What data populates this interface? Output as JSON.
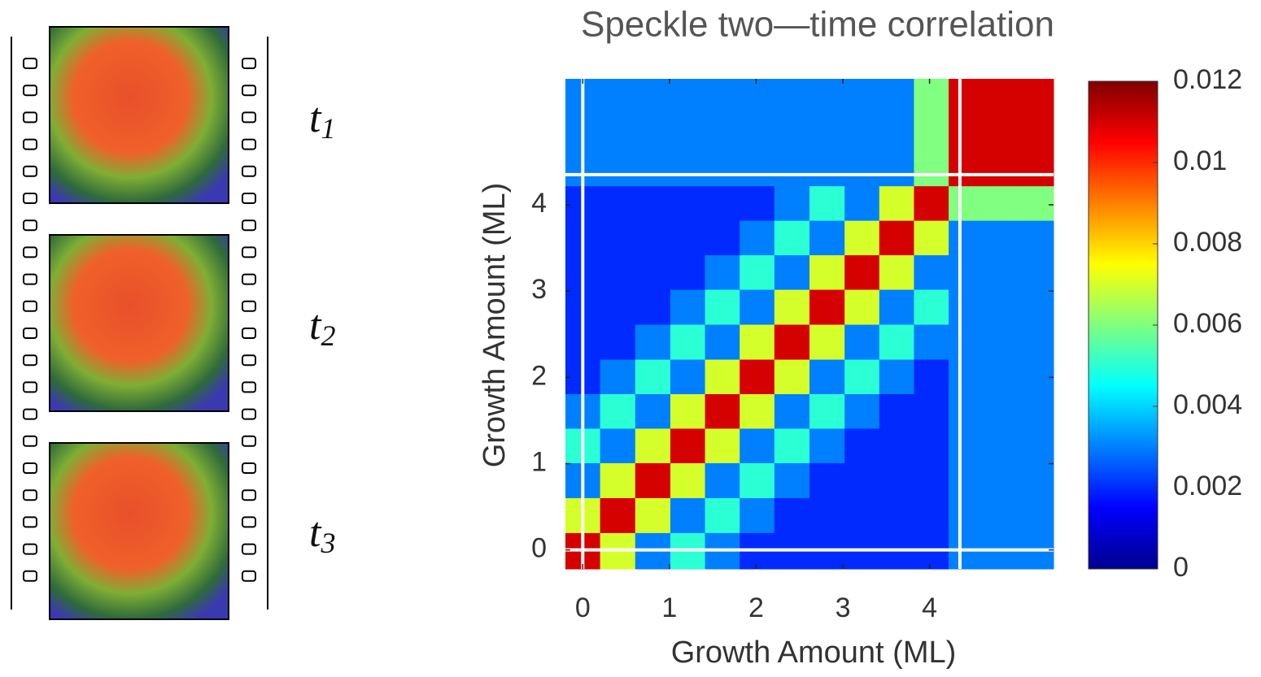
{
  "frames": [
    {
      "label": "t",
      "subscript": "1"
    },
    {
      "label": "t",
      "subscript": "2"
    },
    {
      "label": "t",
      "subscript": "3"
    }
  ],
  "chart_data": {
    "type": "heatmap",
    "title": "Speckle two—time correlation",
    "xlabel": "Growth Amount (ML)",
    "ylabel": "Growth Amount (ML)",
    "xlim": [
      -0.2,
      5.43
    ],
    "ylim": [
      -0.22,
      5.46
    ],
    "xticks": [
      0,
      1,
      2,
      3,
      4
    ],
    "yticks": [
      0,
      1,
      2,
      3,
      4
    ],
    "guide_lines": [
      0,
      4.35
    ],
    "x": [
      0.0,
      0.4,
      0.81,
      1.21,
      1.61,
      2.01,
      2.41,
      2.82,
      3.22,
      3.62,
      4.02,
      4.42,
      4.83,
      5.23
    ],
    "y": [
      0.0,
      0.4,
      0.81,
      1.21,
      1.61,
      2.01,
      2.41,
      2.82,
      3.22,
      3.62,
      4.02,
      4.42,
      4.83,
      5.23
    ],
    "z": [
      [
        0.011,
        0.007,
        0.003,
        0.005,
        0.003,
        0.002,
        0.002,
        0.002,
        0.002,
        0.002,
        0.002,
        0.003,
        0.003,
        0.003
      ],
      [
        0.007,
        0.011,
        0.007,
        0.003,
        0.005,
        0.003,
        0.002,
        0.002,
        0.002,
        0.002,
        0.002,
        0.003,
        0.003,
        0.003
      ],
      [
        0.003,
        0.007,
        0.011,
        0.007,
        0.003,
        0.005,
        0.003,
        0.002,
        0.002,
        0.002,
        0.002,
        0.003,
        0.003,
        0.003
      ],
      [
        0.005,
        0.003,
        0.007,
        0.011,
        0.007,
        0.003,
        0.005,
        0.003,
        0.002,
        0.002,
        0.002,
        0.003,
        0.003,
        0.003
      ],
      [
        0.003,
        0.005,
        0.003,
        0.007,
        0.011,
        0.007,
        0.003,
        0.005,
        0.003,
        0.002,
        0.002,
        0.003,
        0.003,
        0.003
      ],
      [
        0.002,
        0.003,
        0.005,
        0.003,
        0.007,
        0.011,
        0.007,
        0.003,
        0.005,
        0.003,
        0.002,
        0.003,
        0.003,
        0.003
      ],
      [
        0.002,
        0.002,
        0.003,
        0.005,
        0.003,
        0.007,
        0.011,
        0.007,
        0.003,
        0.005,
        0.003,
        0.003,
        0.003,
        0.003
      ],
      [
        0.002,
        0.002,
        0.002,
        0.003,
        0.005,
        0.003,
        0.007,
        0.011,
        0.007,
        0.003,
        0.005,
        0.003,
        0.003,
        0.003
      ],
      [
        0.002,
        0.002,
        0.002,
        0.002,
        0.003,
        0.005,
        0.003,
        0.007,
        0.011,
        0.007,
        0.003,
        0.003,
        0.003,
        0.003
      ],
      [
        0.002,
        0.002,
        0.002,
        0.002,
        0.002,
        0.003,
        0.005,
        0.003,
        0.007,
        0.011,
        0.007,
        0.003,
        0.003,
        0.003
      ],
      [
        0.002,
        0.002,
        0.002,
        0.002,
        0.002,
        0.002,
        0.003,
        0.005,
        0.003,
        0.007,
        0.011,
        0.006,
        0.006,
        0.006
      ],
      [
        0.003,
        0.003,
        0.003,
        0.003,
        0.003,
        0.003,
        0.003,
        0.003,
        0.003,
        0.003,
        0.006,
        0.011,
        0.011,
        0.011
      ],
      [
        0.003,
        0.003,
        0.003,
        0.003,
        0.003,
        0.003,
        0.003,
        0.003,
        0.003,
        0.003,
        0.006,
        0.011,
        0.011,
        0.011
      ],
      [
        0.003,
        0.003,
        0.003,
        0.003,
        0.003,
        0.003,
        0.003,
        0.003,
        0.003,
        0.003,
        0.006,
        0.011,
        0.011,
        0.011
      ]
    ],
    "clim": [
      0,
      0.012
    ],
    "colormap": "jet",
    "cticks": [
      0,
      0.002,
      0.004,
      0.006,
      0.008,
      0.01,
      0.012
    ]
  }
}
